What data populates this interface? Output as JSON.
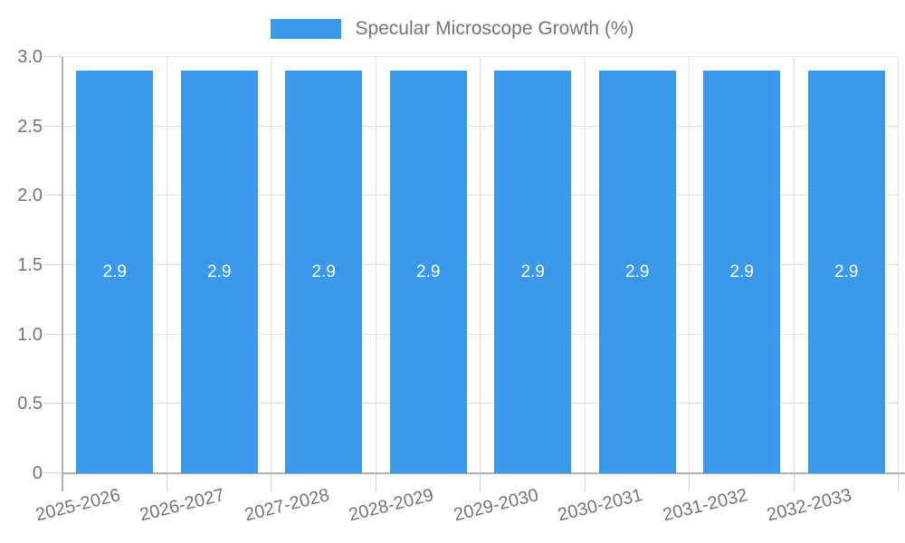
{
  "legend": {
    "items": [
      {
        "label": "Specular Microscope Growth (%)",
        "color": "#3b99ec"
      }
    ]
  },
  "colors": {
    "bar": "#3b99ec",
    "grid": "#e2e2e2",
    "axis": "#b0b0b0",
    "tick": "#d2d2d2",
    "text": "#757575",
    "bar_label": "#ffffff",
    "background": "#ffffff"
  },
  "chart_data": {
    "type": "bar",
    "title": "Specular Microscope Growth (%)",
    "categories": [
      "2025-2026",
      "2026-2027",
      "2027-2028",
      "2028-2029",
      "2029-2030",
      "2030-2031",
      "2031-2032",
      "2032-2033"
    ],
    "series": [
      {
        "name": "Specular Microscope Growth (%)",
        "color": "#3b99ec",
        "values": [
          2.9,
          2.9,
          2.9,
          2.9,
          2.9,
          2.9,
          2.9,
          2.9
        ]
      }
    ],
    "value_labels": [
      "2.9",
      "2.9",
      "2.9",
      "2.9",
      "2.9",
      "2.9",
      "2.9",
      "2.9"
    ],
    "xlabel": "",
    "ylabel": "",
    "ylim": [
      0,
      3
    ],
    "yticks": [
      0,
      0.5,
      1,
      1.5,
      2,
      2.5,
      3
    ],
    "ytick_labels": [
      "0",
      "0.5",
      "1.0",
      "1.5",
      "2.0",
      "2.5",
      "3.0"
    ],
    "grid": true,
    "legend_position": "top"
  }
}
